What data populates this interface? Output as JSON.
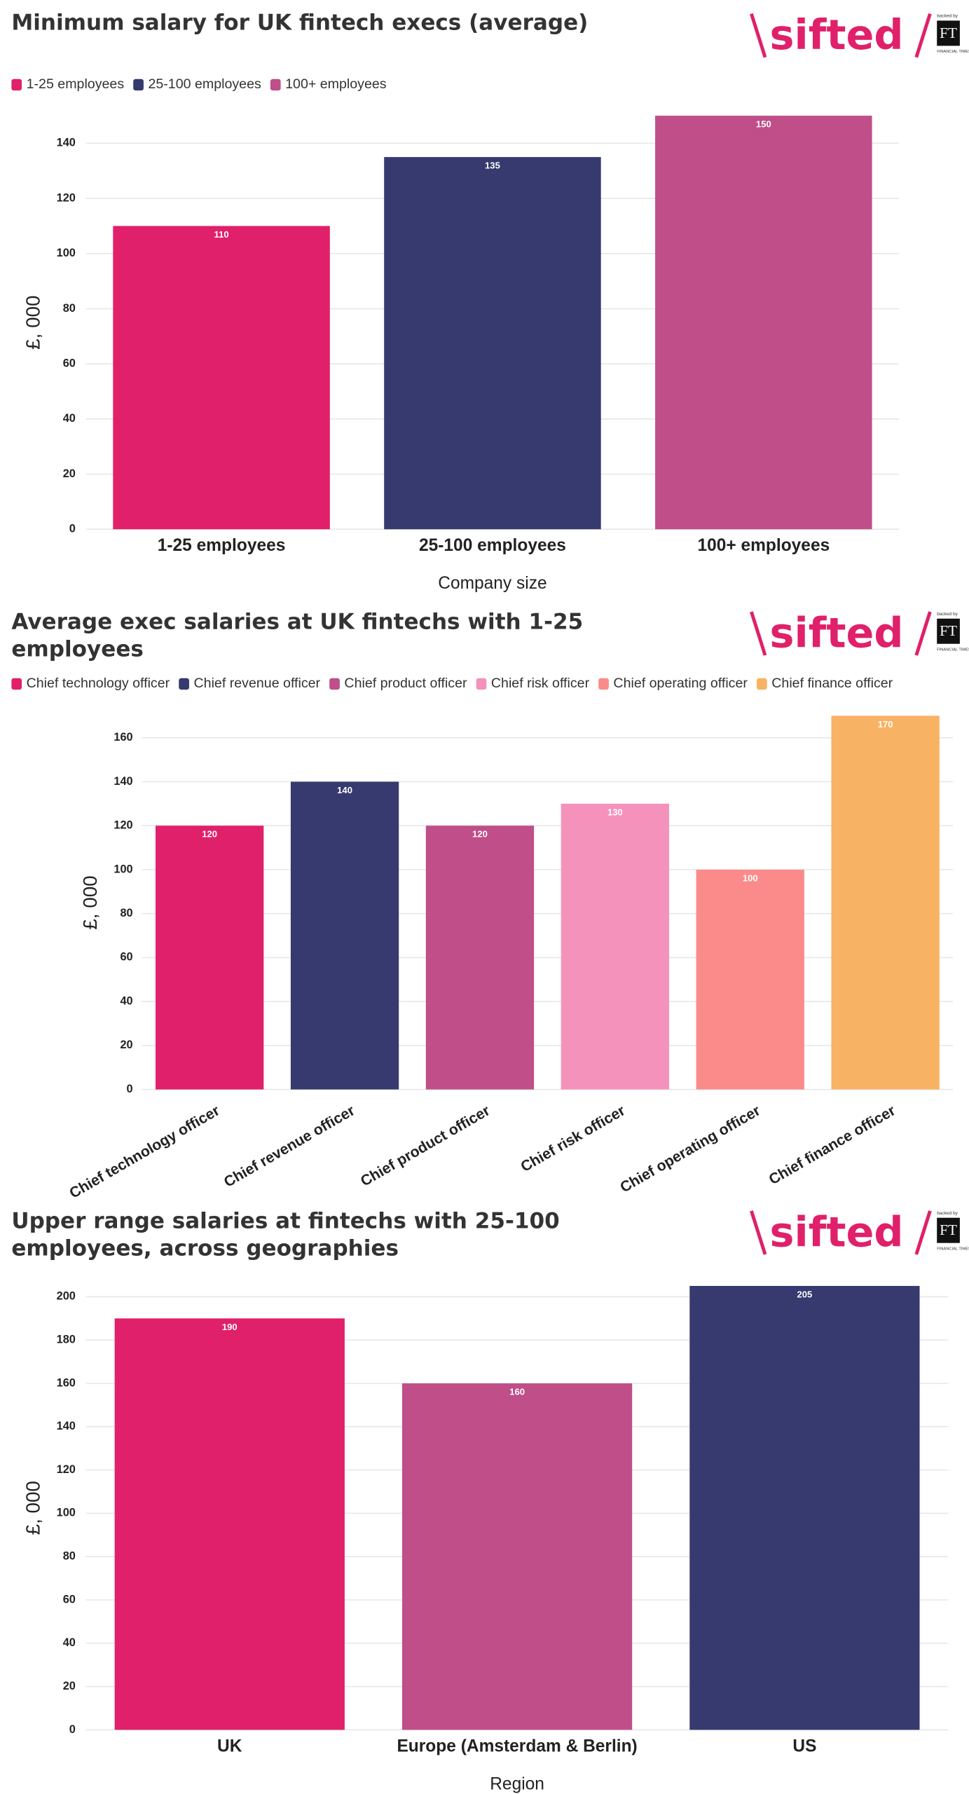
{
  "logo": {
    "name": "sifted",
    "backed_by": "backed by",
    "ft": "FT",
    "ft_name": "FINANCIAL TIMES"
  },
  "chart_data": [
    {
      "type": "bar",
      "title": "Minimum salary for UK fintech execs (average)",
      "categories": [
        "1-25 employees",
        "25-100 employees",
        "100+ employees"
      ],
      "values": [
        110,
        135,
        150
      ],
      "colors": [
        "#e0206a",
        "#363a6f",
        "#bf4e89"
      ],
      "legend": true,
      "xlabel": "Company size",
      "ylabel": "£, 000",
      "ylim": [
        0,
        150
      ],
      "yticks": [
        0,
        20,
        40,
        60,
        80,
        100,
        120,
        140
      ],
      "grid": true
    },
    {
      "type": "bar",
      "title": "Average exec salaries at UK fintechs with 1-25 employees",
      "categories": [
        "Chief technology officer",
        "Chief revenue officer",
        "Chief product officer",
        "Chief risk officer",
        "Chief operating officer",
        "Chief finance officer"
      ],
      "values": [
        120,
        140,
        120,
        130,
        100,
        170
      ],
      "colors": [
        "#e0206a",
        "#363a6f",
        "#bf4e89",
        "#f592bb",
        "#fb8b8a",
        "#f8b264"
      ],
      "legend": true,
      "ylabel": "£, 000",
      "ylim": [
        0,
        170
      ],
      "yticks": [
        0,
        20,
        40,
        60,
        80,
        100,
        120,
        140,
        160
      ],
      "grid": true
    },
    {
      "type": "bar",
      "title": "Upper range salaries at fintechs with 25-100 employees, across geographies",
      "categories": [
        "UK",
        "Europe (Amsterdam & Berlin)",
        "US"
      ],
      "values": [
        190,
        160,
        205
      ],
      "colors": [
        "#e0206a",
        "#bf4e89",
        "#363a6f"
      ],
      "legend": false,
      "xlabel": "Region",
      "ylabel": "£, 000",
      "ylim": [
        0,
        205
      ],
      "yticks": [
        0,
        20,
        40,
        60,
        80,
        100,
        120,
        140,
        160,
        180,
        200
      ],
      "grid": true
    }
  ]
}
